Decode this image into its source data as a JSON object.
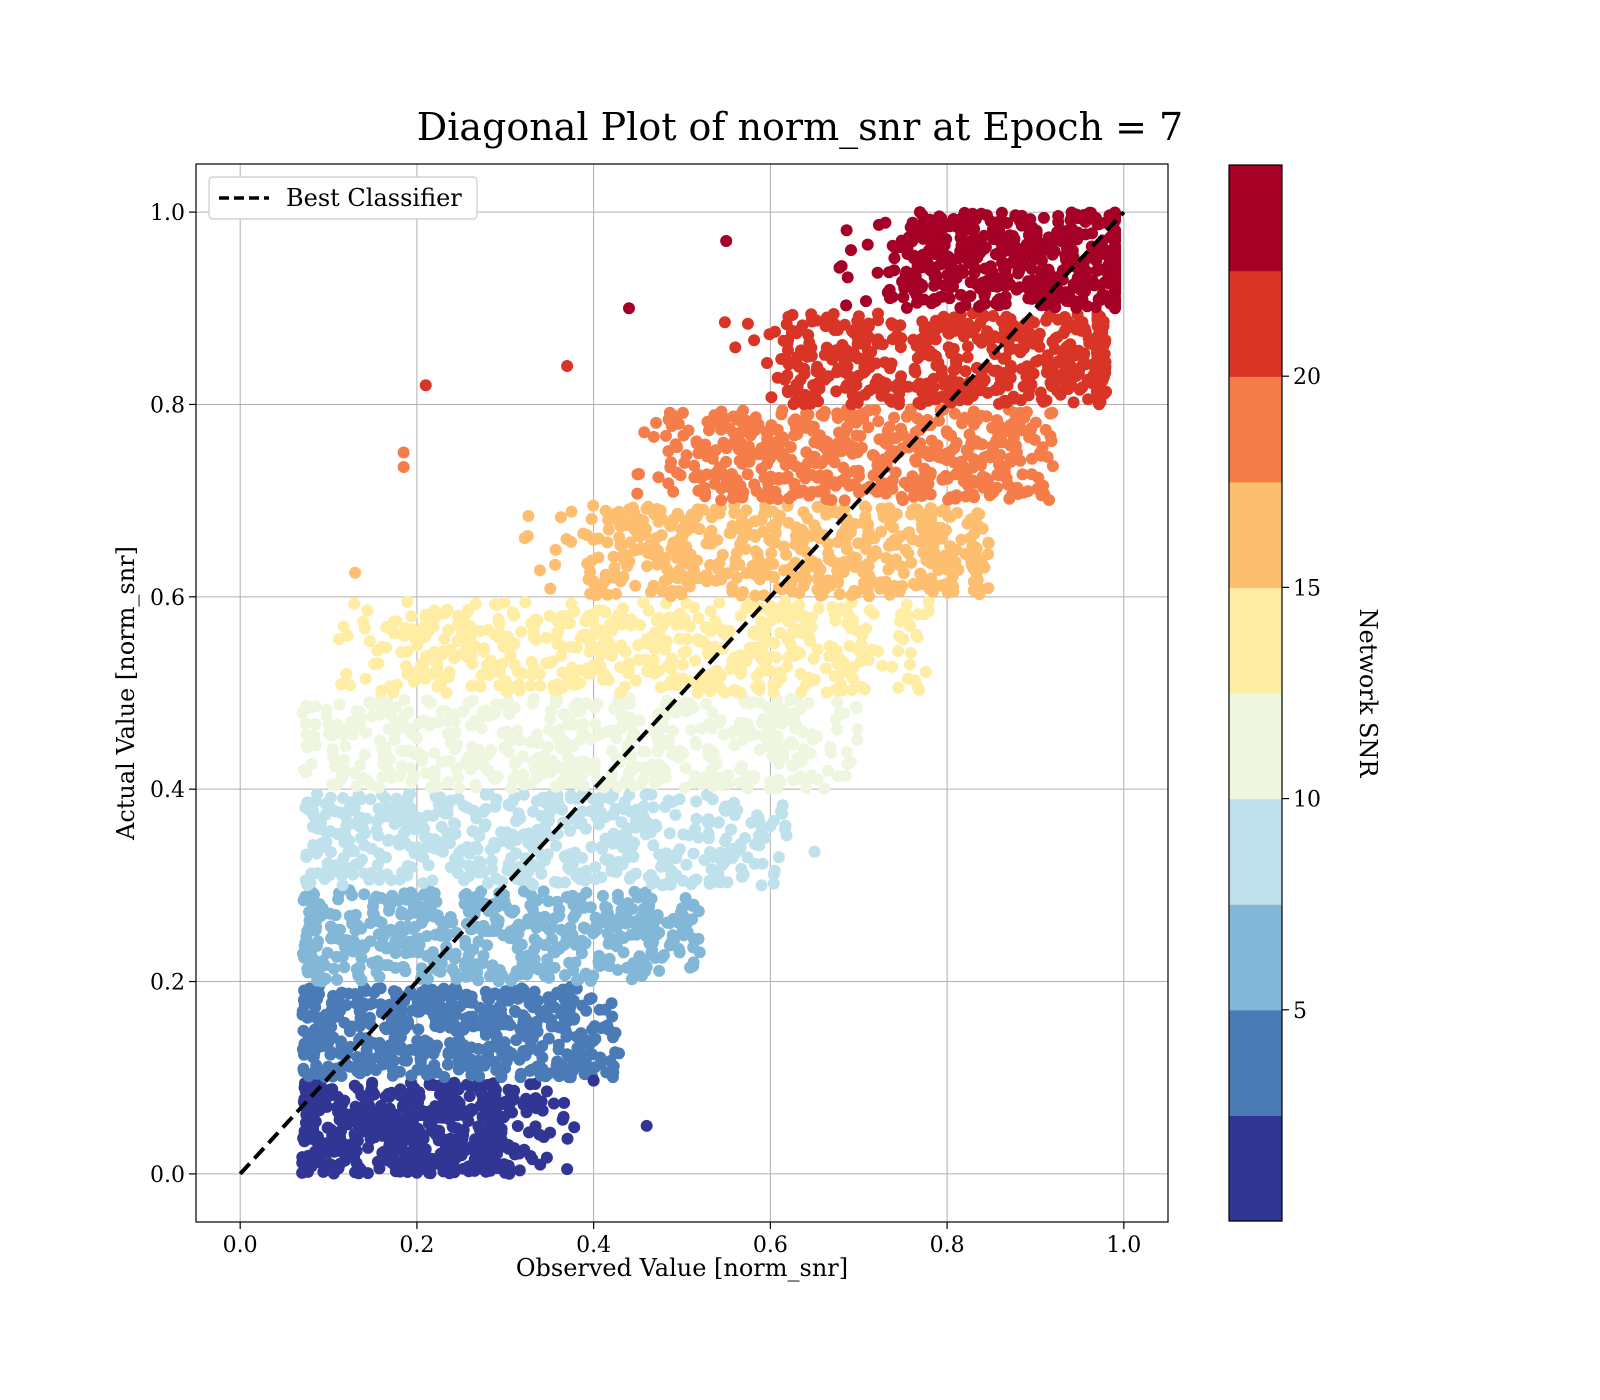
{
  "chart_data": {
    "type": "scatter",
    "title": "Diagonal Plot of norm_snr at Epoch = 7",
    "xlabel": "Observed Value [norm_snr]",
    "ylabel": "Actual Value [norm_snr]",
    "xlim": [
      -0.05,
      1.05
    ],
    "ylim": [
      -0.05,
      1.05
    ],
    "x_ticks": [
      "0.0",
      "0.2",
      "0.4",
      "0.6",
      "0.8",
      "1.0"
    ],
    "y_ticks": [
      "0.0",
      "0.2",
      "0.4",
      "0.6",
      "0.8",
      "1.0"
    ],
    "grid": true,
    "legend": {
      "placement": "top-left",
      "entries": [
        "Best Classifier"
      ]
    },
    "reference_line": {
      "name": "Best Classifier",
      "style": "dashed",
      "color": "#000000",
      "from": [
        0,
        0
      ],
      "to": [
        1,
        1
      ]
    },
    "colorbar": {
      "label": "Network SNR",
      "range": [
        0,
        25
      ],
      "ticks": [
        "5",
        "10",
        "15",
        "20"
      ],
      "bins": [
        {
          "band": [
            0.0,
            0.1
          ],
          "color": "#313695"
        },
        {
          "band": [
            0.1,
            0.2
          ],
          "color": "#4a7bb7"
        },
        {
          "band": [
            0.2,
            0.3
          ],
          "color": "#82b7d7"
        },
        {
          "band": [
            0.3,
            0.4
          ],
          "color": "#bfe1ec"
        },
        {
          "band": [
            0.4,
            0.5
          ],
          "color": "#eef6df"
        },
        {
          "band": [
            0.5,
            0.6
          ],
          "color": "#feeda3"
        },
        {
          "band": [
            0.6,
            0.7
          ],
          "color": "#fdbe70"
        },
        {
          "band": [
            0.7,
            0.8
          ],
          "color": "#f57d4a"
        },
        {
          "band": [
            0.8,
            0.9
          ],
          "color": "#d83527"
        },
        {
          "band": [
            0.9,
            1.0
          ],
          "color": "#a50026"
        }
      ]
    },
    "bands": [
      {
        "y_range": [
          0.0,
          0.095
        ],
        "x_core": [
          0.07,
          0.29
        ],
        "x_tail": 0.38
      },
      {
        "y_range": [
          0.1,
          0.195
        ],
        "x_core": [
          0.07,
          0.37
        ],
        "x_tail": 0.43
      },
      {
        "y_range": [
          0.2,
          0.295
        ],
        "x_core": [
          0.08,
          0.45
        ],
        "x_tail": 0.52
      },
      {
        "y_range": [
          0.3,
          0.395
        ],
        "x_core": [
          0.09,
          0.53
        ],
        "x_tail": 0.62
      },
      {
        "y_range": [
          0.4,
          0.495
        ],
        "x_core": [
          0.1,
          0.6
        ],
        "x_tail": 0.7
      },
      {
        "y_range": [
          0.5,
          0.595
        ],
        "x_core": [
          0.19,
          0.68
        ],
        "x_tail": 0.78
      },
      {
        "y_range": [
          0.6,
          0.695
        ],
        "x_core": [
          0.4,
          0.78
        ],
        "x_tail": 0.85
      },
      {
        "y_range": [
          0.7,
          0.795
        ],
        "x_core": [
          0.52,
          0.87
        ],
        "x_tail": 0.92
      },
      {
        "y_range": [
          0.8,
          0.895
        ],
        "x_core": [
          0.62,
          0.97
        ],
        "x_tail": 0.98
      },
      {
        "y_range": [
          0.9,
          1.0
        ],
        "x_core": [
          0.75,
          0.99
        ],
        "x_tail": 0.99
      }
    ],
    "outliers": [
      {
        "x": 0.21,
        "y": 0.82
      },
      {
        "x": 0.37,
        "y": 0.84
      },
      {
        "x": 0.44,
        "y": 0.9
      },
      {
        "x": 0.55,
        "y": 0.97
      },
      {
        "x": 0.46,
        "y": 0.05
      },
      {
        "x": 0.37,
        "y": 0.005
      },
      {
        "x": 0.185,
        "y": 0.75
      },
      {
        "x": 0.185,
        "y": 0.735
      },
      {
        "x": 0.13,
        "y": 0.625
      },
      {
        "x": 0.65,
        "y": 0.335
      },
      {
        "x": 0.59,
        "y": 0.3
      },
      {
        "x": 0.4,
        "y": 0.097
      }
    ]
  }
}
